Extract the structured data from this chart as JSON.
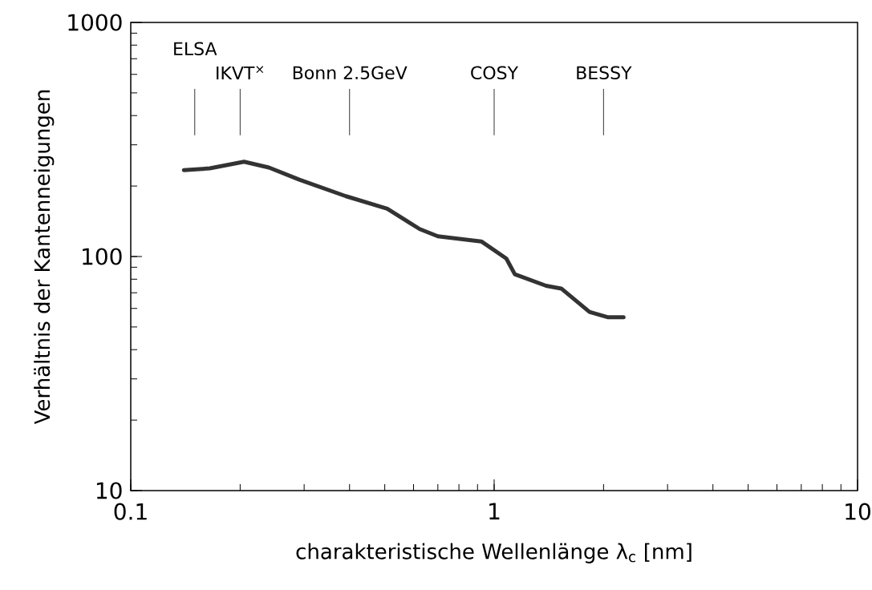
{
  "chart_data": {
    "type": "line",
    "xlabel": "charakteristische Wellenlänge  λ$_{c}$ [nm]",
    "ylabel": "Verhältnis der Kantenneigungen",
    "log": "xy",
    "xlim": [
      0.1,
      10
    ],
    "ylim": [
      10,
      1000
    ],
    "xticks": [
      0.1,
      1,
      10
    ],
    "yticks": [
      10,
      100,
      1000
    ],
    "grid": false,
    "color": "#333333",
    "x": [
      0.14,
      0.165,
      0.205,
      0.24,
      0.291,
      0.391,
      0.508,
      0.624,
      0.7,
      0.922,
      1.08,
      1.14,
      1.39,
      1.53,
      1.83,
      2.06,
      2.27
    ],
    "values": [
      234,
      238,
      254,
      240,
      213,
      181,
      160,
      131,
      122,
      116,
      98,
      84,
      75,
      73,
      58,
      55,
      55
    ],
    "ref_lines": [
      {
        "axis": "x",
        "value": 0.15,
        "label": "ELSA"
      },
      {
        "axis": "x",
        "value": 0.2,
        "label": "IKVT$^{×}$"
      },
      {
        "axis": "x",
        "value": 0.4,
        "label": "Bonn  2.5GeV"
      },
      {
        "axis": "x",
        "value": 1.0,
        "label": "COSY"
      },
      {
        "axis": "x",
        "value": 2.0,
        "label": "BESSY"
      }
    ]
  }
}
